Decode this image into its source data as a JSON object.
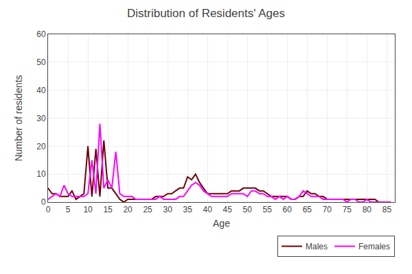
{
  "chart_data": {
    "type": "line",
    "title": "Distribution of Residents' Ages",
    "xlabel": "Age",
    "ylabel": "Number of residents",
    "x": [
      0,
      1,
      2,
      3,
      4,
      5,
      6,
      7,
      8,
      9,
      10,
      11,
      12,
      13,
      14,
      15,
      16,
      17,
      18,
      19,
      20,
      21,
      22,
      23,
      24,
      25,
      26,
      27,
      28,
      29,
      30,
      31,
      32,
      33,
      34,
      35,
      36,
      37,
      38,
      39,
      40,
      41,
      42,
      43,
      44,
      45,
      46,
      47,
      48,
      49,
      50,
      51,
      52,
      53,
      54,
      55,
      56,
      57,
      58,
      59,
      60,
      61,
      62,
      63,
      64,
      65,
      66,
      67,
      68,
      69,
      70,
      71,
      72,
      73,
      74,
      75,
      76,
      77,
      78,
      79,
      80,
      81,
      82,
      83,
      84,
      85,
      86
    ],
    "series": [
      {
        "name": "Males",
        "color": "#6B0000",
        "values": [
          5,
          3,
          3,
          2,
          2,
          2,
          4,
          1,
          2,
          3,
          20,
          2,
          19,
          2,
          22,
          5,
          5,
          3,
          1,
          0,
          1,
          1,
          1,
          1,
          1,
          1,
          1,
          2,
          2,
          2,
          3,
          3,
          4,
          5,
          5,
          9,
          8,
          10,
          7,
          5,
          3,
          3,
          3,
          3,
          3,
          3,
          4,
          4,
          4,
          5,
          5,
          5,
          5,
          4,
          4,
          3,
          2,
          2,
          2,
          2,
          2,
          1,
          1,
          2,
          2,
          4,
          3,
          3,
          2,
          2,
          1,
          1,
          1,
          1,
          1,
          1,
          1,
          1,
          1,
          1,
          1,
          1,
          1,
          0,
          0,
          0,
          0
        ]
      },
      {
        "name": "Females",
        "color": "#FF00FF",
        "values": [
          1,
          2,
          3,
          2,
          6,
          3,
          2,
          2,
          2,
          2,
          3,
          15,
          3,
          28,
          5,
          8,
          5,
          18,
          3,
          2,
          2,
          2,
          1,
          1,
          1,
          1,
          1,
          1,
          2,
          1,
          1,
          1,
          1,
          2,
          2,
          4,
          6,
          7,
          6,
          4,
          3,
          2,
          2,
          2,
          2,
          2,
          3,
          3,
          3,
          3,
          2,
          4,
          4,
          3,
          3,
          2,
          2,
          1,
          2,
          1,
          2,
          1,
          1,
          2,
          4,
          3,
          2,
          2,
          2,
          1,
          1,
          1,
          1,
          1,
          1,
          0,
          1,
          1,
          0,
          0,
          1,
          0,
          0,
          0,
          0,
          0,
          0
        ]
      }
    ],
    "xlim": [
      0,
      87
    ],
    "ylim": [
      0,
      60
    ],
    "xticks": [
      0,
      5,
      10,
      15,
      20,
      25,
      30,
      35,
      40,
      45,
      50,
      55,
      60,
      65,
      70,
      75,
      80,
      85
    ],
    "yticks": [
      0,
      10,
      20,
      30,
      40,
      50,
      60
    ],
    "grid": true,
    "legend": "lower right"
  }
}
